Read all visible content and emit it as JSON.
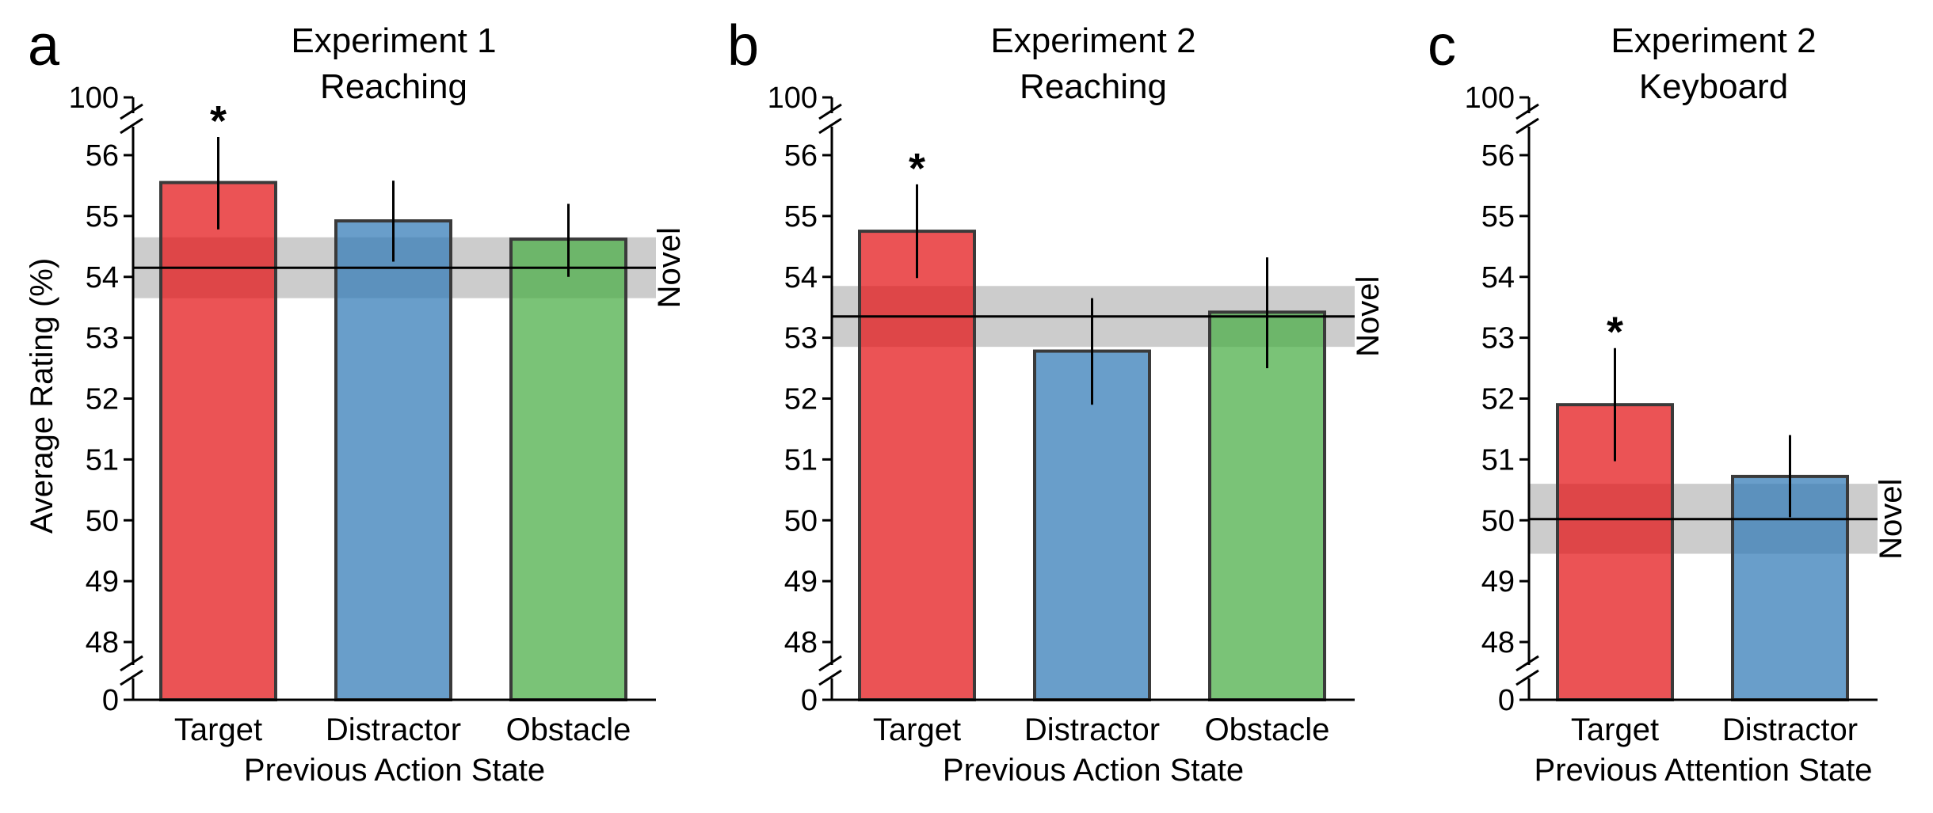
{
  "figure": {
    "ylabel": "Average Rating (%)",
    "novel_label": "Novel",
    "sig_marker": "*",
    "colors": {
      "Target": "#e41a1c",
      "Distractor": "#377eb8",
      "Obstacle": "#4daf4a",
      "novel_band": "#bfbfbf",
      "bar_edge": "#3a3a3a"
    }
  },
  "chart_data": [
    {
      "panel": "a",
      "type": "bar",
      "title": [
        "Experiment 1",
        "Reaching"
      ],
      "xlabel": "Previous Action State",
      "ylabel": "Average Rating (%)",
      "ylim": [
        47.5,
        56.5
      ],
      "yticks": [
        48,
        49,
        50,
        51,
        52,
        53,
        54,
        55,
        56
      ],
      "axis_break_labels": {
        "top": "100",
        "bottom": "0"
      },
      "categories": [
        "Target",
        "Distractor",
        "Obstacle"
      ],
      "values": [
        55.55,
        54.92,
        54.62
      ],
      "error": [
        [
          54.78,
          56.3
        ],
        [
          54.25,
          55.58
        ],
        [
          54.0,
          55.2
        ]
      ],
      "significant": [
        true,
        false,
        false
      ],
      "novel": {
        "mean": 54.15,
        "ci": [
          53.65,
          54.65
        ]
      }
    },
    {
      "panel": "b",
      "type": "bar",
      "title": [
        "Experiment 2",
        "Reaching"
      ],
      "xlabel": "Previous Action State",
      "ylabel": "",
      "ylim": [
        47.5,
        56.5
      ],
      "yticks": [
        48,
        49,
        50,
        51,
        52,
        53,
        54,
        55,
        56
      ],
      "axis_break_labels": {
        "top": "100",
        "bottom": "0"
      },
      "categories": [
        "Target",
        "Distractor",
        "Obstacle"
      ],
      "values": [
        54.75,
        52.78,
        53.42
      ],
      "error": [
        [
          53.98,
          55.52
        ],
        [
          51.9,
          53.65
        ],
        [
          52.5,
          54.32
        ]
      ],
      "significant": [
        true,
        false,
        false
      ],
      "novel": {
        "mean": 53.35,
        "ci": [
          52.85,
          53.85
        ]
      }
    },
    {
      "panel": "c",
      "type": "bar",
      "title": [
        "Experiment 2",
        "Keyboard"
      ],
      "xlabel": "Previous Attention State",
      "ylabel": "",
      "ylim": [
        47.5,
        56.5
      ],
      "yticks": [
        48,
        49,
        50,
        51,
        52,
        53,
        54,
        55,
        56
      ],
      "axis_break_labels": {
        "top": "100",
        "bottom": "0"
      },
      "categories": [
        "Target",
        "Distractor"
      ],
      "values": [
        51.9,
        50.72
      ],
      "error": [
        [
          50.97,
          52.83
        ],
        [
          50.05,
          51.4
        ]
      ],
      "significant": [
        true,
        false
      ],
      "novel": {
        "mean": 50.02,
        "ci": [
          49.45,
          50.6
        ]
      }
    }
  ]
}
